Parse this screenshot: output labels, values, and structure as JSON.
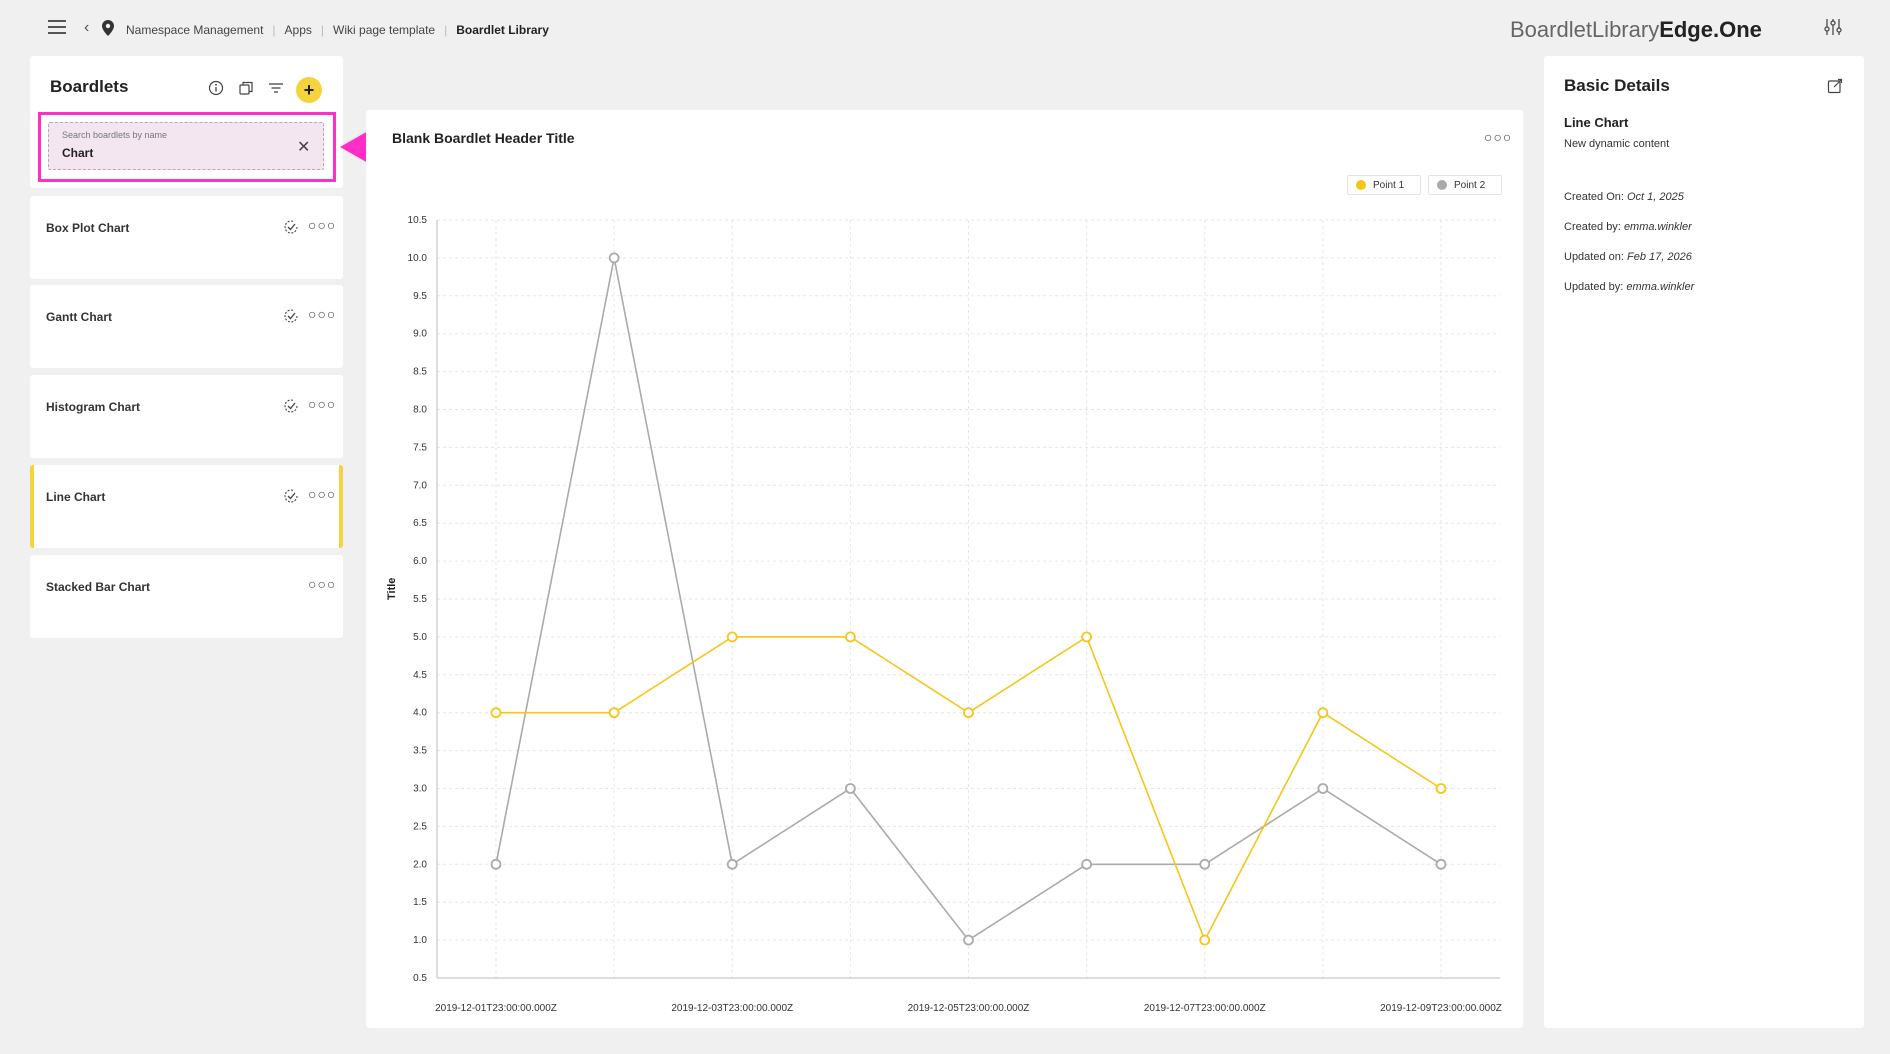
{
  "header": {
    "breadcrumbs": [
      "Namespace Management",
      "Apps",
      "Wiki page template",
      "Boardlet Library"
    ],
    "brand_light": "BoardletLibrary",
    "brand_bold": "Edge.One"
  },
  "sidebar": {
    "title": "Boardlets",
    "search": {
      "label": "Search boardlets by name",
      "value": "Chart"
    },
    "items": [
      {
        "label": "Box Plot Chart",
        "checked": true
      },
      {
        "label": "Gantt Chart",
        "checked": true
      },
      {
        "label": "Histogram Chart",
        "checked": true
      },
      {
        "label": "Line Chart",
        "checked": true,
        "active": true
      },
      {
        "label": "Stacked Bar Chart",
        "checked": false
      }
    ]
  },
  "main": {
    "title": "Blank Boardlet Header Title"
  },
  "details": {
    "title": "Basic Details",
    "name": "Line Chart",
    "description": "New dynamic content",
    "created_on_label": "Created On:",
    "created_on": "Oct 1, 2025",
    "created_by_label": "Created by:",
    "created_by": "emma.winkler",
    "updated_on_label": "Updated on:",
    "updated_on": "Feb 17, 2026",
    "updated_by_label": "Updated by:",
    "updated_by": "emma.winkler"
  },
  "colors": {
    "accent": "#f5d33c",
    "series1": "#f5c518",
    "series2": "#aaaaaa",
    "highlight": "#ff2ec8"
  },
  "chart_data": {
    "type": "line",
    "title": "Blank Boardlet Header Title",
    "xlabel": "",
    "ylabel": "Title",
    "x": [
      "2019-12-01T23:00:00.000Z",
      "2019-12-02T23:00:00.000Z",
      "2019-12-03T23:00:00.000Z",
      "2019-12-04T23:00:00.000Z",
      "2019-12-05T23:00:00.000Z",
      "2019-12-06T23:00:00.000Z",
      "2019-12-07T23:00:00.000Z",
      "2019-12-08T23:00:00.000Z",
      "2019-12-09T23:00:00.000Z"
    ],
    "x_tick_labels": [
      "2019-12-01T23:00:00.000Z",
      "2019-12-03T23:00:00.000Z",
      "2019-12-05T23:00:00.000Z",
      "2019-12-07T23:00:00.000Z",
      "2019-12-09T23:00:00.000Z"
    ],
    "ylim": [
      0.5,
      10.5
    ],
    "y_ticks": [
      "0.5",
      "1.0",
      "1.5",
      "2.0",
      "2.5",
      "3.0",
      "3.5",
      "4.0",
      "4.5",
      "5.0",
      "5.5",
      "6.0",
      "6.5",
      "7.0",
      "7.5",
      "8.0",
      "8.5",
      "9.0",
      "9.5",
      "10.0",
      "10.5"
    ],
    "grid": true,
    "legend": "top-right",
    "series": [
      {
        "name": "Point 1",
        "color": "#f5c518",
        "values": [
          4,
          4,
          5,
          5,
          4,
          5,
          1,
          4,
          3
        ]
      },
      {
        "name": "Point 2",
        "color": "#aaaaaa",
        "values": [
          2,
          10,
          2,
          3,
          1,
          2,
          2,
          3,
          2
        ]
      }
    ]
  }
}
